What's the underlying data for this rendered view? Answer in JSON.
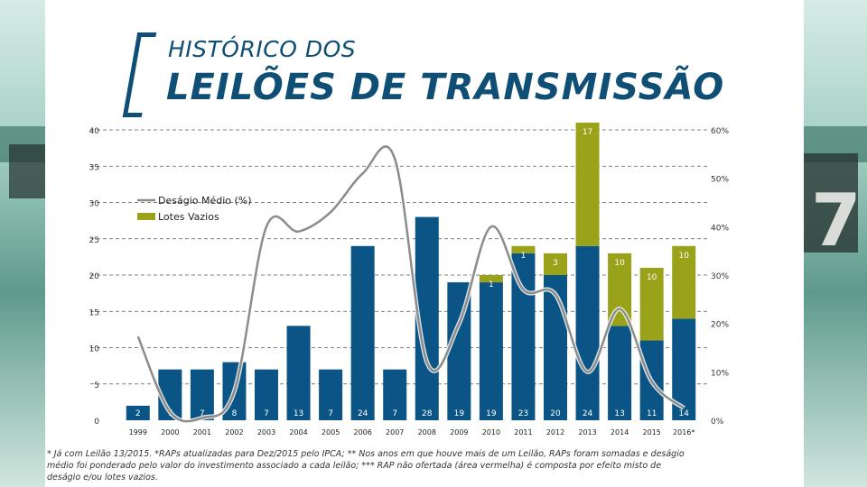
{
  "header": {
    "title_line1": "HISTÓRICO DOS",
    "title_line2": "LEILÕES DE TRANSMISSÃO"
  },
  "chart_data": {
    "type": "bar",
    "stacked": true,
    "categories": [
      "1999",
      "2000",
      "2001",
      "2002",
      "2003",
      "2004",
      "2005",
      "2006",
      "2007",
      "2008",
      "2009",
      "2010",
      "2011",
      "2012",
      "2013",
      "2014",
      "2015",
      "2016*"
    ],
    "series": [
      {
        "name": "Lotes",
        "color": "#0b5586",
        "values": [
          2,
          7,
          7,
          8,
          7,
          13,
          7,
          24,
          7,
          28,
          19,
          19,
          23,
          20,
          24,
          13,
          11,
          14
        ],
        "labels": [
          "2",
          "7",
          "7",
          "8",
          "7",
          "13",
          "7",
          "24",
          "7",
          "28",
          "19",
          "19",
          "23",
          "20",
          "24",
          "13",
          "11",
          "14"
        ]
      },
      {
        "name": "Lotes Vazios",
        "color": "#9aa21a",
        "values": [
          0,
          0,
          0,
          0,
          0,
          0,
          0,
          0,
          0,
          0,
          0,
          1,
          1,
          3,
          17,
          10,
          10,
          10
        ],
        "labels": [
          "",
          "",
          "",
          "",
          "",
          "",
          "",
          "",
          "",
          "",
          "",
          "1",
          "1",
          "3",
          "17",
          "10",
          "10",
          "10"
        ]
      }
    ],
    "line_series": {
      "name": "Deságio Médio (%)",
      "color": "#8c8c8c",
      "values": [
        17.3,
        1.7,
        0.5,
        6.0,
        40.0,
        39.0,
        43.0,
        51.0,
        54.0,
        12.0,
        20.0,
        40.0,
        27.0,
        26.0,
        10.0,
        23.0,
        8.0,
        2.5
      ]
    },
    "y_left": {
      "ticks": [
        0,
        5,
        10,
        15,
        20,
        25,
        30,
        35,
        40
      ],
      "range": [
        0,
        40
      ]
    },
    "y_right": {
      "ticks": [
        "0%",
        "10%",
        "20%",
        "30%",
        "40%",
        "50%",
        "60%"
      ],
      "range": [
        0,
        60
      ]
    },
    "legend": {
      "entries": [
        {
          "label": "Deságio Médio (%)",
          "kind": "line"
        },
        {
          "label": "Lotes Vazios",
          "kind": "box"
        }
      ],
      "position": "top-left"
    },
    "grid": true
  },
  "footnote": "* Já com Leilão 13/2015. *RAPs atualizadas para Dez/2015 pelo IPCA; ** Nos anos em que houve mais de um Leilão, RAPs foram somadas e deságio médio foi ponderado pelo valor do investimento associado a cada leilão; *** RAP não ofertada (área vermelha) é composta por efeito misto de deságio e/ou lotes vazios."
}
